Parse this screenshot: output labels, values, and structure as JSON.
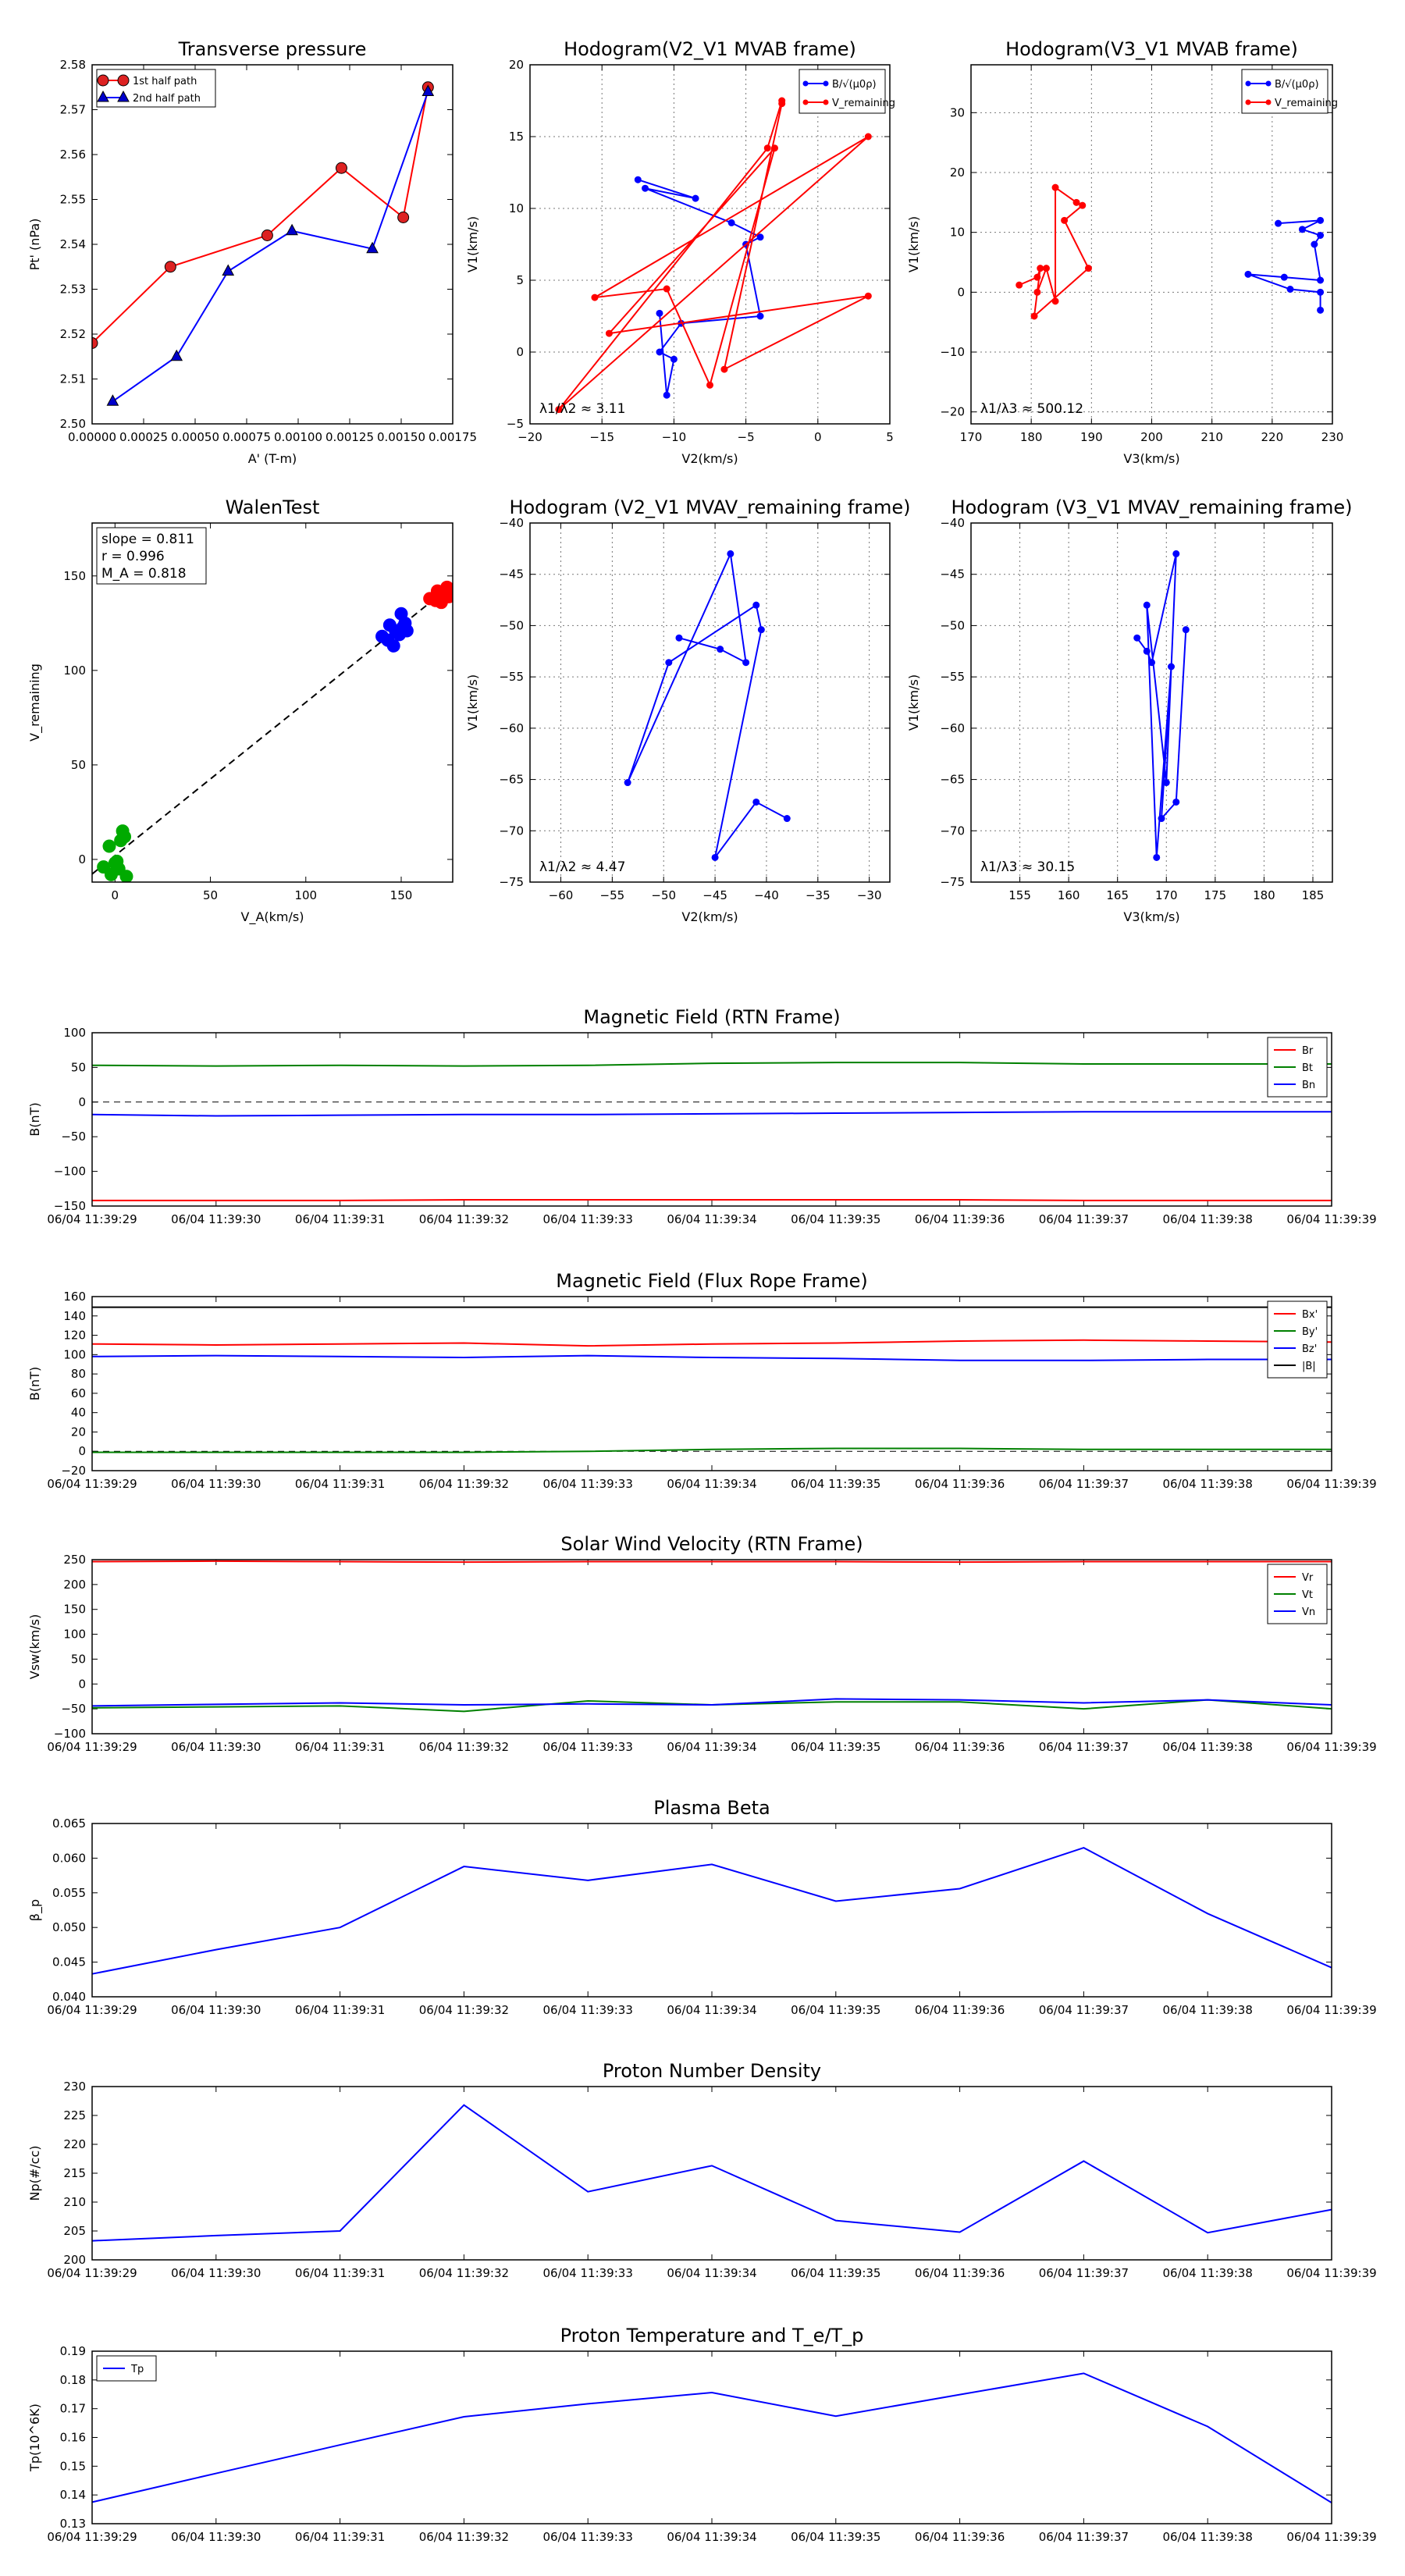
{
  "chart_data": [
    {
      "id": "tp",
      "type": "line",
      "title": "Transverse pressure",
      "xlabel": "A' (T-m)",
      "ylabel": "Pt' (nPa)",
      "xlim": [
        0.0,
        0.00175
      ],
      "ylim": [
        2.5,
        2.58
      ],
      "xticks": [
        0.0,
        0.00025,
        0.0005,
        0.00075,
        0.001,
        0.00125,
        0.0015,
        0.00175
      ],
      "xtick_labels": [
        "0.00000",
        "0.00025",
        "0.00050",
        "0.00075",
        "0.00100",
        "0.00125",
        "0.00150",
        "0.00175"
      ],
      "yticks": [
        2.5,
        2.51,
        2.52,
        2.53,
        2.54,
        2.55,
        2.56,
        2.57,
        2.58
      ],
      "ytick_labels": [
        "2.50",
        "2.51",
        "2.52",
        "2.53",
        "2.54",
        "2.55",
        "2.56",
        "2.57",
        "2.58"
      ],
      "grid": false,
      "legend": "top-left",
      "series": [
        {
          "name": "1st half path",
          "marker": "circle",
          "line": "#ff0000",
          "fill": "#dd2222",
          "x": [
            0.0,
            0.00038,
            0.00085,
            0.00121,
            0.00151,
            0.00163
          ],
          "y": [
            2.518,
            2.535,
            2.542,
            2.557,
            2.546,
            2.575
          ]
        },
        {
          "name": "2nd half path",
          "marker": "triangle",
          "line": "#0000ff",
          "fill": "#0000cc",
          "x": [
            0.0001,
            0.00041,
            0.00066,
            0.00097,
            0.00136,
            0.00163
          ],
          "y": [
            2.505,
            2.515,
            2.534,
            2.543,
            2.539,
            2.574
          ]
        }
      ]
    },
    {
      "id": "h1",
      "type": "line",
      "title": "Hodogram(V2_V1 MVAB frame)",
      "xlabel": "V2(km/s)",
      "ylabel": "V1(km/s)",
      "xlim": [
        -20,
        5
      ],
      "ylim": [
        -5,
        20
      ],
      "xticks": [
        -20,
        -15,
        -10,
        -5,
        0,
        5
      ],
      "xtick_labels": [
        "−20",
        "−15",
        "−10",
        "−5",
        "0",
        "5"
      ],
      "yticks": [
        -5,
        0,
        5,
        10,
        15,
        20
      ],
      "ytick_labels": [
        "−5",
        "0",
        "5",
        "10",
        "15",
        "20"
      ],
      "grid": true,
      "legend": "top-right",
      "annotation": "λ1/λ2 ≈ 3.11",
      "series": [
        {
          "name": "B/√(μ0ρ)",
          "color": "#0000ff",
          "x": [
            -12.5,
            -8.5,
            -12.0,
            -6,
            -4,
            -5,
            -4,
            -9.5,
            -11,
            -10,
            -10.5,
            -11
          ],
          "y": [
            12.0,
            10.7,
            11.4,
            9,
            8,
            7.5,
            2.5,
            2,
            0,
            -0.5,
            -3,
            2.7
          ]
        },
        {
          "name": "V_remaining",
          "color": "#ff0000",
          "x": [
            -2.5,
            -3.5,
            -18.0,
            3.5,
            -15.5,
            -10.5,
            -7.5,
            -3,
            -14.5,
            3.5,
            -6.5,
            -2.5
          ],
          "y": [
            17.5,
            14.2,
            -4.0,
            15.0,
            3.8,
            4.4,
            -2.3,
            14.2,
            1.3,
            3.9,
            -1.2,
            17.3
          ]
        }
      ]
    },
    {
      "id": "h2",
      "type": "line",
      "title": "Hodogram(V3_V1 MVAB frame)",
      "xlabel": "V3(km/s)",
      "ylabel": "V1(km/s)",
      "xlim": [
        170,
        230
      ],
      "ylim": [
        -22,
        38
      ],
      "xticks": [
        170,
        180,
        190,
        200,
        210,
        220,
        230
      ],
      "xtick_labels": [
        "170",
        "180",
        "190",
        "200",
        "210",
        "220",
        "230"
      ],
      "yticks": [
        -20,
        -10,
        0,
        10,
        20,
        30
      ],
      "ytick_labels": [
        "−20",
        "−10",
        "0",
        "10",
        "20",
        "30"
      ],
      "grid": true,
      "legend": "top-right",
      "annotation": "λ1/λ3 ≈ 500.12",
      "series": [
        {
          "name": "B/√(μ0ρ)",
          "color": "#0000ff",
          "x": [
            221,
            228,
            225,
            228,
            227,
            228,
            222,
            216,
            223,
            228,
            228
          ],
          "y": [
            11.5,
            12,
            10.5,
            9.5,
            8,
            2,
            2.5,
            3,
            0.5,
            0,
            -3
          ]
        },
        {
          "name": "V_remaining",
          "color": "#ff0000",
          "x": [
            178,
            181,
            181.5,
            180.5,
            189.5,
            185.5,
            188.5,
            187.5,
            184,
            184,
            182.5,
            181
          ],
          "y": [
            1.2,
            2.5,
            4,
            -4,
            4,
            12,
            14.5,
            15,
            17.5,
            -1.5,
            4,
            0
          ]
        }
      ]
    },
    {
      "id": "wt",
      "type": "scatter",
      "title": "WalenTest",
      "xlabel": "V_A(km/s)",
      "ylabel": "V_remaining",
      "xlim": [
        -12,
        177
      ],
      "ylim": [
        -12,
        178
      ],
      "xticks": [
        0,
        50,
        100,
        150
      ],
      "xtick_labels": [
        "0",
        "50",
        "100",
        "150"
      ],
      "yticks": [
        0,
        50,
        100,
        150
      ],
      "ytick_labels": [
        "0",
        "50",
        "100",
        "150"
      ],
      "grid": false,
      "annotation_lines": [
        "slope = 0.811",
        "r = 0.996",
        "M_A = 0.818"
      ],
      "fit_line": {
        "slope": 0.811,
        "intercept": 2.0
      },
      "series": [
        {
          "color": "#00aa00",
          "x": [
            -6,
            -3,
            1,
            4,
            3,
            5,
            -2,
            2,
            0,
            6
          ],
          "y": [
            -4,
            7,
            -1,
            15,
            10,
            12,
            -8,
            -5,
            -2,
            -9
          ]
        },
        {
          "color": "#0000ff",
          "x": [
            140,
            144,
            147,
            150,
            152,
            149,
            143,
            153,
            151,
            146
          ],
          "y": [
            118,
            124,
            121,
            130,
            125,
            119,
            116,
            121,
            123,
            113
          ]
        },
        {
          "color": "#ff0000",
          "x": [
            165,
            169,
            171,
            174,
            172,
            168,
            175,
            170
          ],
          "y": [
            138,
            142,
            136,
            144,
            140,
            137,
            139,
            141
          ]
        }
      ]
    },
    {
      "id": "h3",
      "type": "line",
      "title": "Hodogram (V2_V1 MVAV_remaining frame)",
      "xlabel": "V2(km/s)",
      "ylabel": "V1(km/s)",
      "xlim": [
        -63,
        -28
      ],
      "ylim": [
        -75,
        -40
      ],
      "xticks": [
        -60,
        -55,
        -50,
        -45,
        -40,
        -35,
        -30
      ],
      "xtick_labels": [
        "−60",
        "−55",
        "−50",
        "−45",
        "−40",
        "−35",
        "−30"
      ],
      "yticks": [
        -75,
        -70,
        -65,
        -60,
        -55,
        -50,
        -45,
        -40
      ],
      "ytick_labels": [
        "−75",
        "−70",
        "−65",
        "−60",
        "−55",
        "−50",
        "−45",
        "−40"
      ],
      "grid": true,
      "annotation": "λ1/λ2 ≈ 4.47",
      "series": [
        {
          "color": "#0000ff",
          "x": [
            -48.5,
            -44.5,
            -42,
            -43.5,
            -53.5,
            -49.5,
            -41,
            -40.5,
            -45,
            -41,
            -38
          ],
          "y": [
            -51.2,
            -52.3,
            -53.6,
            -43,
            -65.3,
            -53.6,
            -48,
            -50.4,
            -72.6,
            -67.2,
            -68.8
          ]
        }
      ]
    },
    {
      "id": "h4",
      "type": "line",
      "title": "Hodogram (V3_V1 MVAV_remaining frame)",
      "xlabel": "V3(km/s)",
      "ylabel": "V1(km/s)",
      "xlim": [
        150,
        187
      ],
      "ylim": [
        -75,
        -40
      ],
      "xticks": [
        155,
        160,
        165,
        170,
        175,
        180,
        185
      ],
      "xtick_labels": [
        "155",
        "160",
        "165",
        "170",
        "175",
        "180",
        "185"
      ],
      "yticks": [
        -75,
        -70,
        -65,
        -60,
        -55,
        -50,
        -45,
        -40
      ],
      "ytick_labels": [
        "−75",
        "−70",
        "−65",
        "−60",
        "−55",
        "−50",
        "−45",
        "−40"
      ],
      "grid": true,
      "annotation": "λ1/λ3 ≈ 30.15",
      "series": [
        {
          "color": "#0000ff",
          "x": [
            167,
            168,
            168.5,
            171,
            170,
            168,
            169,
            170.5,
            169.5,
            171,
            172
          ],
          "y": [
            -51.2,
            -52.5,
            -53.6,
            -43,
            -65.3,
            -48,
            -72.6,
            -54,
            -68.8,
            -67.2,
            -50.4
          ]
        }
      ]
    },
    {
      "id": "mag_rtn",
      "type": "line",
      "title": "Magnetic Field (RTN Frame)",
      "ylabel": "B(nT)",
      "ylim": [
        -150,
        100
      ],
      "yticks": [
        -150,
        -100,
        -50,
        0,
        50,
        100
      ],
      "ytick_labels": [
        "−150",
        "−100",
        "−50",
        "0",
        "50",
        "100"
      ],
      "zero_line": true,
      "legend": "top-right",
      "series": [
        {
          "name": "Br",
          "color": "#ff0000",
          "values": [
            -142,
            -142,
            -142,
            -141,
            -141,
            -141,
            -141,
            -141,
            -142,
            -142,
            -142
          ]
        },
        {
          "name": "Bt",
          "color": "#008000",
          "values": [
            53,
            52,
            53,
            52,
            53,
            56,
            57,
            57,
            55,
            55,
            55
          ]
        },
        {
          "name": "Bn",
          "color": "#0000ff",
          "values": [
            -18,
            -20,
            -19,
            -18,
            -18,
            -17,
            -16,
            -15,
            -14,
            -14,
            -14
          ]
        }
      ]
    },
    {
      "id": "mag_fr",
      "type": "line",
      "title": "Magnetic Field (Flux Rope Frame)",
      "ylabel": "B(nT)",
      "ylim": [
        -20,
        160
      ],
      "yticks": [
        -20,
        0,
        20,
        40,
        60,
        80,
        100,
        120,
        140,
        160
      ],
      "ytick_labels": [
        "−20",
        "0",
        "20",
        "40",
        "60",
        "80",
        "100",
        "120",
        "140",
        "160"
      ],
      "zero_line": true,
      "legend": "top-right",
      "series": [
        {
          "name": "Bx'",
          "color": "#ff0000",
          "values": [
            111,
            110,
            111,
            112,
            109,
            111,
            112,
            114,
            115,
            114,
            113
          ]
        },
        {
          "name": "By'",
          "color": "#008000",
          "values": [
            -1,
            -1,
            -1,
            -1,
            0,
            2,
            3,
            3,
            2,
            2,
            2
          ]
        },
        {
          "name": "Bz'",
          "color": "#0000ff",
          "values": [
            98,
            99,
            98,
            97,
            99,
            97,
            96,
            94,
            94,
            95,
            95
          ]
        },
        {
          "name": "|B|",
          "color": "#000000",
          "values": [
            149,
            149,
            149,
            149,
            149,
            149,
            149,
            149,
            149,
            149,
            149
          ]
        }
      ]
    },
    {
      "id": "vsw",
      "type": "line",
      "title": "Solar Wind Velocity (RTN Frame)",
      "ylabel": "Vsw(km/s)",
      "ylim": [
        -100,
        250
      ],
      "yticks": [
        -100,
        -50,
        0,
        50,
        100,
        150,
        200,
        250
      ],
      "ytick_labels": [
        "−100",
        "−50",
        "0",
        "50",
        "100",
        "150",
        "200",
        "250"
      ],
      "legend": "top-right",
      "series": [
        {
          "name": "Vr",
          "color": "#ff0000",
          "values": [
            246,
            247,
            246,
            245,
            246,
            246,
            246,
            245,
            246,
            246,
            246
          ]
        },
        {
          "name": "Vt",
          "color": "#008000",
          "values": [
            -48,
            -46,
            -44,
            -55,
            -34,
            -42,
            -36,
            -36,
            -50,
            -32,
            -50
          ]
        },
        {
          "name": "Vn",
          "color": "#0000ff",
          "values": [
            -44,
            -41,
            -38,
            -42,
            -40,
            -42,
            -30,
            -32,
            -38,
            -32,
            -42
          ]
        }
      ]
    },
    {
      "id": "beta",
      "type": "line",
      "title": "Plasma Beta",
      "ylabel": "β_p",
      "ylim": [
        0.04,
        0.065
      ],
      "yticks": [
        0.04,
        0.045,
        0.05,
        0.055,
        0.06,
        0.065
      ],
      "ytick_labels": [
        "0.040",
        "0.045",
        "0.050",
        "0.055",
        "0.060",
        "0.065"
      ],
      "series": [
        {
          "color": "#0000ff",
          "values": [
            0.0433,
            0.0468,
            0.05,
            0.0588,
            0.0568,
            0.0591,
            0.0538,
            0.0556,
            0.0615,
            0.052,
            0.0442
          ]
        }
      ]
    },
    {
      "id": "np",
      "type": "line",
      "title": "Proton Number Density",
      "ylabel": "Np(#/cc)",
      "ylim": [
        200,
        230
      ],
      "yticks": [
        200,
        205,
        210,
        215,
        220,
        225,
        230
      ],
      "ytick_labels": [
        "200",
        "205",
        "210",
        "215",
        "220",
        "225",
        "230"
      ],
      "series": [
        {
          "color": "#0000ff",
          "values": [
            203.3,
            204.2,
            205.0,
            226.8,
            211.8,
            216.3,
            206.8,
            204.8,
            217.1,
            204.7,
            208.7
          ]
        }
      ]
    },
    {
      "id": "tp_temp",
      "type": "line",
      "title": "Proton Temperature and T_e/T_p",
      "ylabel": "Tp(10^6K)",
      "ylim": [
        0.13,
        0.19
      ],
      "yticks": [
        0.13,
        0.14,
        0.15,
        0.16,
        0.17,
        0.18,
        0.19
      ],
      "ytick_labels": [
        "0.13",
        "0.14",
        "0.15",
        "0.16",
        "0.17",
        "0.18",
        "0.19"
      ],
      "legend": "top-left",
      "series": [
        {
          "name": "Tp",
          "color": "#0000ff",
          "values": [
            0.1375,
            0.1475,
            0.1574,
            0.1672,
            0.1717,
            0.1756,
            0.1674,
            0.1749,
            0.1823,
            0.1638,
            0.1373
          ]
        }
      ]
    }
  ],
  "time_axis": {
    "labels": [
      "06/04 11:39:29",
      "06/04 11:39:30",
      "06/04 11:39:31",
      "06/04 11:39:32",
      "06/04 11:39:33",
      "06/04 11:39:34",
      "06/04 11:39:35",
      "06/04 11:39:36",
      "06/04 11:39:37",
      "06/04 11:39:38",
      "06/04 11:39:39"
    ]
  }
}
